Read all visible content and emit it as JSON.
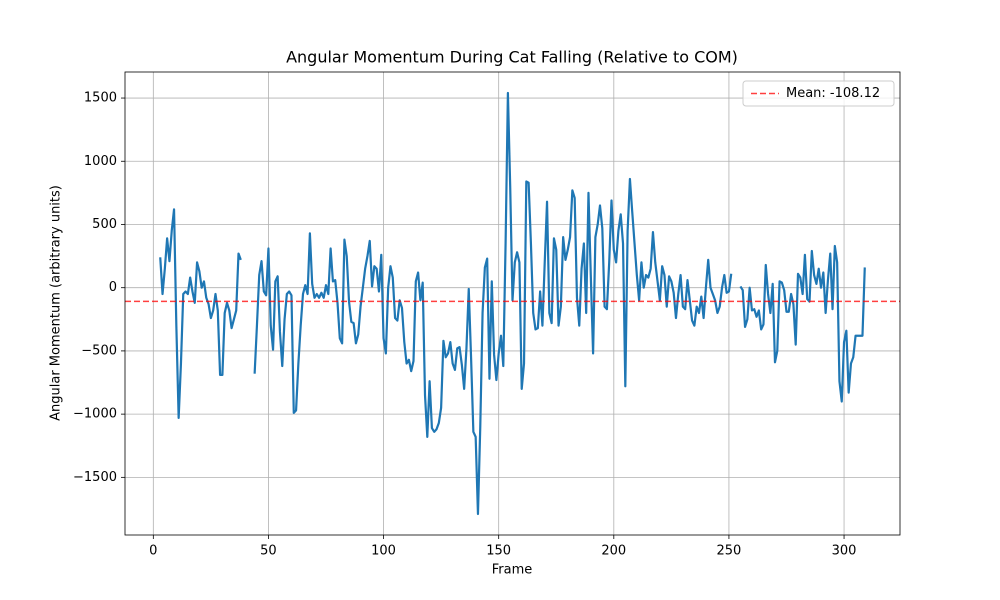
{
  "chart_data": {
    "type": "line",
    "title": "Angular Momentum During Cat Falling (Relative to COM)",
    "xlabel": "Frame",
    "ylabel": "Angular Momentum (arbitrary units)",
    "xlim": [
      -12.3,
      324.3
    ],
    "ylim": [
      -1956,
      1706
    ],
    "xticks": [
      0,
      50,
      100,
      150,
      200,
      250,
      300
    ],
    "yticks": [
      {
        "value": -1500,
        "label": "−1500"
      },
      {
        "value": -1000,
        "label": "−1000"
      },
      {
        "value": -500,
        "label": "−500"
      },
      0,
      500,
      1000,
      1500
    ],
    "grid": true,
    "legend": "upper right",
    "x": [
      3,
      4,
      5,
      6,
      7,
      8,
      9,
      10,
      11,
      12,
      13,
      14,
      15,
      16,
      17,
      18,
      19,
      20,
      21,
      22,
      23,
      24,
      25,
      26,
      27,
      28,
      29,
      30,
      31,
      32,
      33,
      34,
      35,
      36,
      37,
      38,
      39,
      40,
      41,
      42,
      43,
      44,
      45,
      46,
      47,
      48,
      49,
      50,
      51,
      52,
      53,
      54,
      55,
      56,
      57,
      58,
      59,
      60,
      61,
      62,
      63,
      64,
      65,
      66,
      67,
      68,
      69,
      70,
      71,
      72,
      73,
      74,
      75,
      76,
      77,
      78,
      79,
      80,
      81,
      82,
      83,
      84,
      85,
      86,
      87,
      88,
      89,
      90,
      91,
      92,
      93,
      94,
      95,
      96,
      97,
      98,
      99,
      100,
      101,
      102,
      103,
      104,
      105,
      106,
      107,
      108,
      109,
      110,
      111,
      112,
      113,
      114,
      115,
      116,
      117,
      118,
      119,
      120,
      121,
      122,
      123,
      124,
      125,
      126,
      127,
      128,
      129,
      130,
      131,
      132,
      133,
      134,
      135,
      136,
      137,
      138,
      139,
      140,
      141,
      142,
      143,
      144,
      145,
      146,
      147,
      148,
      149,
      150,
      151,
      152,
      153,
      154,
      155,
      156,
      157,
      158,
      159,
      160,
      161,
      162,
      163,
      164,
      165,
      166,
      167,
      168,
      169,
      170,
      171,
      172,
      173,
      174,
      175,
      176,
      177,
      178,
      179,
      180,
      181,
      182,
      183,
      184,
      185,
      186,
      187,
      188,
      189,
      190,
      191,
      192,
      193,
      194,
      195,
      196,
      197,
      198,
      199,
      200,
      201,
      202,
      203,
      204,
      205,
      206,
      207,
      208,
      209,
      210,
      211,
      212,
      213,
      214,
      215,
      216,
      217,
      218,
      219,
      220,
      221,
      222,
      223,
      224,
      225,
      226,
      227,
      228,
      229,
      230,
      231,
      232,
      233,
      234,
      235,
      236,
      237,
      238,
      239,
      240,
      241,
      242,
      243,
      244,
      245,
      246,
      247,
      248,
      249,
      250,
      251,
      252,
      253,
      254,
      255,
      256,
      257,
      258,
      259,
      260,
      261,
      262,
      263,
      264,
      265,
      266,
      267,
      268,
      269,
      270,
      271,
      272,
      273,
      274,
      275,
      276,
      277,
      278,
      279,
      280,
      281,
      282,
      283,
      284,
      285,
      286,
      287,
      288,
      289,
      290,
      291,
      292,
      293,
      294,
      295,
      296,
      297,
      298,
      299,
      300,
      301,
      302,
      303,
      304,
      305,
      306,
      307,
      308,
      309
    ],
    "series": [
      {
        "color": "#1f77b4",
        "values": [
          240,
          -50,
          150,
          390,
          210,
          450,
          620,
          -300,
          -1030,
          -600,
          -50,
          -30,
          -50,
          80,
          -30,
          -120,
          200,
          130,
          0,
          50,
          -80,
          -130,
          -240,
          -180,
          -50,
          -180,
          -690,
          -690,
          -200,
          -120,
          -180,
          -320,
          -250,
          -180,
          270,
          220,
          null,
          null,
          null,
          null,
          null,
          -680,
          -300,
          100,
          210,
          -30,
          -60,
          310,
          -300,
          -490,
          50,
          90,
          -350,
          -620,
          -250,
          -50,
          -30,
          -60,
          -990,
          -970,
          -600,
          -300,
          -50,
          20,
          -50,
          430,
          30,
          -80,
          -50,
          -80,
          -40,
          -80,
          20,
          -50,
          310,
          50,
          60,
          -120,
          -400,
          -440,
          380,
          250,
          -110,
          -270,
          -280,
          -440,
          -370,
          -150,
          0,
          150,
          250,
          370,
          10,
          170,
          150,
          -30,
          260,
          -400,
          -520,
          0,
          170,
          80,
          -240,
          -260,
          -100,
          -160,
          -430,
          -600,
          -570,
          -660,
          -580,
          50,
          120,
          -100,
          40,
          -850,
          -1180,
          -740,
          -1110,
          -1140,
          -1120,
          -1070,
          -950,
          -420,
          -550,
          -520,
          -430,
          -600,
          -650,
          -480,
          -470,
          -610,
          -800,
          -480,
          -10,
          -550,
          -1140,
          -1180,
          -1790,
          -1100,
          -200,
          160,
          230,
          -720,
          50,
          -530,
          -730,
          -520,
          -380,
          -620,
          350,
          1540,
          800,
          -100,
          200,
          280,
          200,
          -800,
          -600,
          840,
          830,
          350,
          -200,
          -330,
          -320,
          -30,
          -300,
          200,
          680,
          -200,
          -280,
          390,
          300,
          -300,
          -150,
          400,
          220,
          300,
          400,
          770,
          710,
          -80,
          -300,
          150,
          350,
          -200,
          750,
          100,
          -520,
          400,
          500,
          650,
          470,
          -150,
          -170,
          200,
          690,
          300,
          200,
          450,
          580,
          350,
          -780,
          450,
          860,
          600,
          350,
          100,
          -100,
          200,
          0,
          100,
          80,
          150,
          440,
          200,
          50,
          -100,
          170,
          100,
          -150,
          90,
          50,
          -40,
          -240,
          -50,
          100,
          -150,
          -170,
          60,
          -100,
          -260,
          -300,
          -150,
          -200,
          -70,
          -240,
          0,
          220,
          0,
          -50,
          -100,
          -200,
          -150,
          0,
          100,
          -40,
          -30,
          110,
          null,
          null,
          null,
          10,
          -20,
          -310,
          -250,
          0,
          -180,
          -170,
          -230,
          -180,
          -330,
          -290,
          180,
          -50,
          -200,
          30,
          -590,
          -500,
          50,
          40,
          -20,
          -190,
          -190,
          -50,
          -130,
          -450,
          110,
          80,
          -50,
          260,
          -90,
          -110,
          290,
          100,
          30,
          150,
          0,
          120,
          -200,
          60,
          270,
          -170,
          330,
          200,
          -740,
          -900,
          -430,
          -340,
          -830,
          -600,
          -550,
          -380,
          -380,
          -380,
          -380,
          160
        ]
      }
    ],
    "mean_line": {
      "name": "Mean: -108.12",
      "value": -108.12,
      "color": "#ff0000"
    }
  }
}
